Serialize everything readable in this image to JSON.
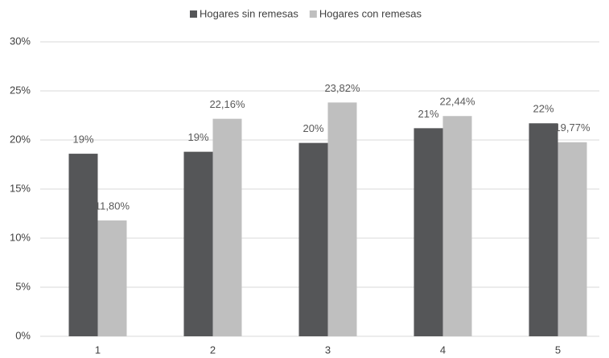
{
  "chart_data": {
    "type": "bar",
    "categories": [
      "1",
      "2",
      "3",
      "4",
      "5"
    ],
    "series": [
      {
        "name": "Hogares sin remesas",
        "color": "#555658",
        "values": [
          18.6,
          18.8,
          19.7,
          21.2,
          21.7
        ],
        "value_labels": [
          "19%",
          "19%",
          "20%",
          "21%",
          "22%"
        ]
      },
      {
        "name": "Hogares con remesas",
        "color": "#bfbfbf",
        "values": [
          11.8,
          22.16,
          23.82,
          22.44,
          19.77
        ],
        "value_labels": [
          "11,80%",
          "22,16%",
          "23,82%",
          "22,44%",
          "19,77%"
        ]
      }
    ],
    "ylim": [
      0,
      30
    ],
    "yticks": [
      {
        "value": 0,
        "label": "0%"
      },
      {
        "value": 5,
        "label": "5%"
      },
      {
        "value": 10,
        "label": "10%"
      },
      {
        "value": 15,
        "label": "15%"
      },
      {
        "value": 20,
        "label": "20%"
      },
      {
        "value": 25,
        "label": "25%"
      },
      {
        "value": 30,
        "label": "30%"
      }
    ],
    "grid": true,
    "legend": "top"
  }
}
